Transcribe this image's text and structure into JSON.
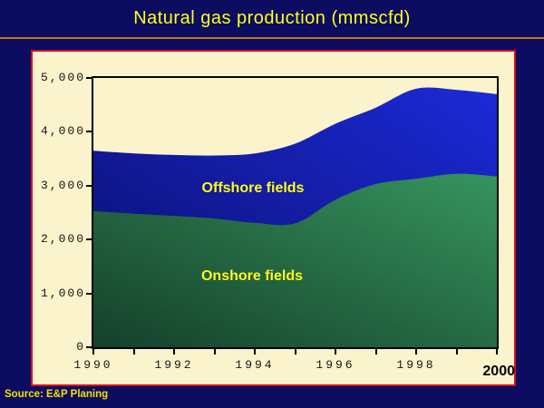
{
  "title": "Natural gas production (mmscfd)",
  "source": "Source: E&P Planing",
  "colors": {
    "background": "#0c0c60",
    "title_text": "#ffff1e",
    "divider": "#c77908",
    "panel_background": "#faf3cb",
    "panel_border": "#d50f1e",
    "axis": "#000000",
    "area_label_text": "#ffff22",
    "offshore_gradient": [
      "#0a0e6a",
      "#1c2ad8"
    ],
    "onshore_gradient": [
      "#15402a",
      "#36945e"
    ]
  },
  "chart_data": {
    "type": "area",
    "stacked": true,
    "title": "Natural gas production (mmscfd)",
    "xlabel": "",
    "ylabel": "",
    "x": [
      1990,
      1991,
      1992,
      1993,
      1994,
      1995,
      1996,
      1997,
      1998,
      1999,
      2000
    ],
    "xlim": [
      1990,
      2000
    ],
    "ylim": [
      0,
      5000
    ],
    "grid": false,
    "legend_position": "labels-inside-areas",
    "y_tick_labels": [
      "0",
      "1,000",
      "2,000",
      "3,000",
      "4,000",
      "5,000"
    ],
    "x_tick_labels": [
      "1990",
      "1992",
      "1994",
      "1996",
      "1998"
    ],
    "x_end_label": "2000",
    "series": [
      {
        "name": "Onshore fields",
        "values": [
          2530,
          2480,
          2440,
          2390,
          2310,
          2300,
          2740,
          3030,
          3130,
          3220,
          3170
        ],
        "gradient": [
          "#15402a",
          "#36945e"
        ]
      },
      {
        "name": "Offshore fields",
        "values": [
          1120,
          1120,
          1130,
          1170,
          1290,
          1480,
          1410,
          1420,
          1670,
          1560,
          1530
        ],
        "gradient": [
          "#0a0e6a",
          "#1c2ad8"
        ]
      }
    ],
    "stacked_totals": [
      3650,
      3600,
      3570,
      3560,
      3600,
      3780,
      4150,
      4450,
      4800,
      4780,
      4700
    ]
  }
}
